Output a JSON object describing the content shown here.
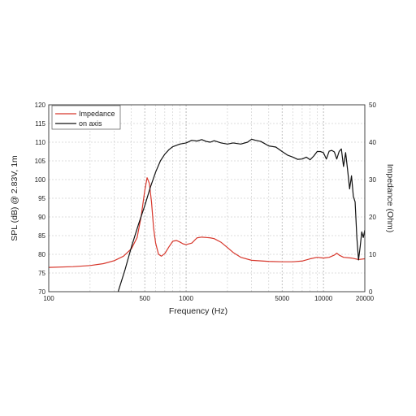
{
  "chart_data": {
    "type": "line",
    "xscale": "log",
    "xlim": [
      100,
      20000
    ],
    "ylim_left": [
      70,
      120
    ],
    "ylim_right": [
      0,
      50
    ],
    "xlabel": "Frequency (Hz)",
    "ylabel_left": "SPL (dB) @ 2.83V, 1m",
    "ylabel_right": "Impedance (Ohm)",
    "grid": true,
    "legend_position": "top-left",
    "x_ticks": [
      100,
      500,
      1000,
      5000,
      10000,
      20000
    ],
    "x_tick_labels": [
      "100",
      "500",
      "1000",
      "5000",
      "10000",
      "20000"
    ],
    "y_left_ticks": [
      70,
      75,
      80,
      85,
      90,
      95,
      100,
      105,
      110,
      115,
      120
    ],
    "y_left_tick_labels": [
      "70",
      "75",
      "80",
      "85",
      "90",
      "95",
      "100",
      "105",
      "110",
      "115",
      "120"
    ],
    "y_right_ticks": [
      0,
      10,
      20,
      30,
      40,
      50
    ],
    "y_right_tick_labels": [
      "0",
      "10",
      "20",
      "30",
      "40",
      "50"
    ],
    "series": [
      {
        "name": "Impedance",
        "axis": "right",
        "color": "#d7372c",
        "x": [
          100,
          150,
          200,
          250,
          300,
          350,
          400,
          440,
          470,
          500,
          520,
          540,
          560,
          580,
          600,
          630,
          660,
          700,
          750,
          800,
          850,
          900,
          950,
          1000,
          1100,
          1200,
          1300,
          1400,
          1500,
          1600,
          1800,
          2000,
          2200,
          2500,
          3000,
          4000,
          5000,
          6000,
          7000,
          8000,
          9000,
          10000,
          11000,
          12000,
          12500,
          13000,
          14000,
          16000,
          18000,
          20000
        ],
        "y": [
          6.5,
          6.7,
          7,
          7.5,
          8.3,
          9.5,
          11.5,
          14.5,
          20,
          27,
          30.5,
          29,
          24,
          17,
          13,
          10,
          9.5,
          10.2,
          12,
          13.5,
          13.7,
          13.3,
          12.8,
          12.6,
          13,
          14.4,
          14.6,
          14.5,
          14.4,
          14.2,
          13.2,
          11.8,
          10.5,
          9.2,
          8.4,
          8.1,
          8,
          8,
          8.2,
          8.8,
          9.2,
          9,
          9.2,
          9.8,
          10.3,
          9.8,
          9.2,
          9,
          8.6,
          8.8
        ]
      },
      {
        "name": "on axis",
        "axis": "left",
        "color": "#111111",
        "x": [
          320,
          360,
          400,
          450,
          500,
          550,
          600,
          650,
          700,
          750,
          800,
          900,
          1000,
          1100,
          1200,
          1300,
          1400,
          1500,
          1600,
          1800,
          2000,
          2200,
          2500,
          2800,
          3000,
          3200,
          3500,
          4000,
          4500,
          5000,
          5500,
          6000,
          6500,
          7000,
          7500,
          8000,
          8500,
          9000,
          9500,
          10000,
          10500,
          11000,
          11500,
          12000,
          12500,
          13000,
          13500,
          14000,
          14500,
          15000,
          15500,
          16000,
          16500,
          17000,
          17500,
          18000,
          18500,
          19000,
          19500,
          20000
        ],
        "y": [
          70,
          76,
          82,
          88,
          93,
          98,
          102,
          105,
          106.8,
          108,
          108.8,
          109.5,
          109.8,
          110.5,
          110.3,
          110.7,
          110.2,
          110,
          110.4,
          109.8,
          109.5,
          109.8,
          109.5,
          110,
          110.8,
          110.5,
          110.2,
          109,
          108.7,
          107.5,
          106.5,
          106,
          105.4,
          105.5,
          106,
          105.3,
          106.3,
          107.5,
          107.5,
          107.2,
          105.5,
          107.6,
          107.8,
          107.4,
          105.5,
          107.5,
          108.2,
          103.5,
          107.2,
          102.5,
          97.5,
          101,
          95.5,
          94,
          84.5,
          78.5,
          82,
          86,
          84.5,
          86.5
        ]
      }
    ]
  }
}
